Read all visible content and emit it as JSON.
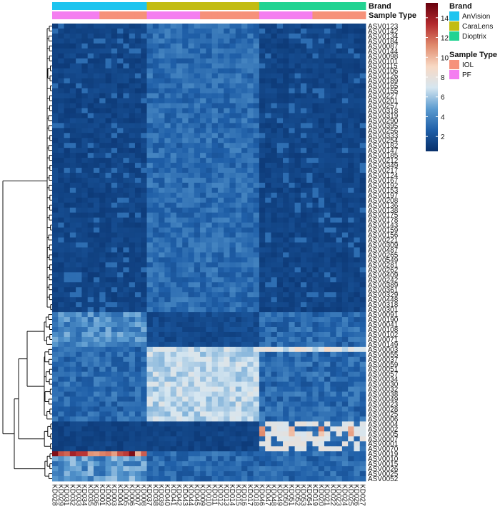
{
  "chart_data": {
    "type": "heatmap",
    "annotation_labels": [
      "Brand",
      "Sample Type"
    ],
    "color_scale": {
      "ticks": [
        2,
        4,
        6,
        8,
        10,
        12,
        14
      ],
      "min": 0.5,
      "max": 15.5,
      "colors": [
        "#08306b",
        "#1f5fa8",
        "#5b9bd0",
        "#d6e6f0",
        "#f8d9c4",
        "#e08a6c",
        "#b32a2e",
        "#67000d"
      ]
    },
    "legend": {
      "brand_title": "Brand",
      "brand": [
        {
          "name": "AnVision",
          "color": "#1ec4ef"
        },
        {
          "name": "CaraLens",
          "color": "#c2bc12"
        },
        {
          "name": "Dioptrix",
          "color": "#22d392"
        }
      ],
      "sample_title": "Sample Type",
      "sample_type": [
        {
          "name": "IOL",
          "color": "#f6917a"
        },
        {
          "name": "PF",
          "color": "#f47ef0"
        }
      ]
    },
    "columns": [
      "KD028",
      "KD029",
      "KD031",
      "KD032",
      "KD033",
      "KD034",
      "KD035",
      "KD036",
      "KD001",
      "KD002",
      "KD003",
      "KD004",
      "KD005",
      "KD006",
      "KD007",
      "KD008",
      "KD037",
      "KD038",
      "KD039",
      "KD040",
      "KD041",
      "KD042",
      "KD043",
      "KD044",
      "KD045",
      "KD009",
      "KD010",
      "KD011",
      "KD012",
      "KD013",
      "KD014",
      "KD015",
      "KD016",
      "KD017",
      "KD018",
      "KD046",
      "KD047",
      "KD048",
      "KD049",
      "KD050",
      "KD051",
      "KD052",
      "KD053",
      "KD054",
      "KD019",
      "KD020",
      "KD021",
      "KD022",
      "KD023",
      "KD024",
      "KD025",
      "KD026",
      "KD027"
    ],
    "column_brand": [
      "AnVision",
      "AnVision",
      "AnVision",
      "AnVision",
      "AnVision",
      "AnVision",
      "AnVision",
      "AnVision",
      "AnVision",
      "AnVision",
      "AnVision",
      "AnVision",
      "AnVision",
      "AnVision",
      "AnVision",
      "AnVision",
      "CaraLens",
      "CaraLens",
      "CaraLens",
      "CaraLens",
      "CaraLens",
      "CaraLens",
      "CaraLens",
      "CaraLens",
      "CaraLens",
      "CaraLens",
      "CaraLens",
      "CaraLens",
      "CaraLens",
      "CaraLens",
      "CaraLens",
      "CaraLens",
      "CaraLens",
      "CaraLens",
      "CaraLens",
      "Dioptrix",
      "Dioptrix",
      "Dioptrix",
      "Dioptrix",
      "Dioptrix",
      "Dioptrix",
      "Dioptrix",
      "Dioptrix",
      "Dioptrix",
      "Dioptrix",
      "Dioptrix",
      "Dioptrix",
      "Dioptrix",
      "Dioptrix",
      "Dioptrix",
      "Dioptrix",
      "Dioptrix",
      "Dioptrix"
    ],
    "column_sample_type": [
      "PF",
      "PF",
      "PF",
      "PF",
      "PF",
      "PF",
      "PF",
      "PF",
      "IOL",
      "IOL",
      "IOL",
      "IOL",
      "IOL",
      "IOL",
      "IOL",
      "IOL",
      "PF",
      "PF",
      "PF",
      "PF",
      "PF",
      "PF",
      "PF",
      "PF",
      "PF",
      "IOL",
      "IOL",
      "IOL",
      "IOL",
      "IOL",
      "IOL",
      "IOL",
      "IOL",
      "IOL",
      "IOL",
      "PF",
      "PF",
      "PF",
      "PF",
      "PF",
      "PF",
      "PF",
      "PF",
      "PF",
      "IOL",
      "IOL",
      "IOL",
      "IOL",
      "IOL",
      "IOL",
      "IOL",
      "IOL",
      "IOL"
    ],
    "rows": [
      "ASV0123",
      "ASV0142",
      "ASV0134",
      "ASV0184",
      "ASV0087",
      "ASV0144",
      "ASV0098",
      "ASV0101",
      "ASV0115",
      "ASV0106",
      "ASV0126",
      "ASV0189",
      "ASV0165",
      "ASV0155",
      "ASV0227",
      "ASV0201",
      "ASV0257",
      "ASV0318",
      "ASV0319",
      "ASV0290",
      "ASV0395",
      "ASV0256",
      "ASV0333",
      "ASV0254",
      "ASV0182",
      "ASV0147",
      "ASV0185",
      "ASV0212",
      "ASV0349",
      "ASV0217",
      "ASV0124",
      "ASV0167",
      "ASV0192",
      "ASV0153",
      "ASV0197",
      "ASV0208",
      "ASV0136",
      "ASV0138",
      "ASV0175",
      "ASV0178",
      "ASV0143",
      "ASV0159",
      "ASV0156",
      "ASV0221",
      "ASV0309",
      "ASV0487",
      "ASV0265",
      "ASV0549",
      "ASV0281",
      "ASV0262",
      "ASV0409",
      "ASV0242",
      "ASV0389",
      "ASV0361",
      "ASV0329",
      "ASV0448",
      "ASV0318",
      "ASV0301",
      "ASV0091",
      "ASV0190",
      "ASV0041",
      "ASV0108",
      "ASV0102",
      "ASV0071",
      "ASV0149",
      "ASV0003",
      "ASV0055",
      "ASV0037",
      "ASV0059",
      "ASV0051",
      "ASV0057",
      "ASV0034",
      "ASV0030",
      "ASV0032",
      "ASV0038",
      "ASV0049",
      "ASV0023",
      "ASV0028",
      "ASV0025",
      "ASV0006",
      "ASV0004",
      "ASV0002",
      "ASV0005",
      "ASV0007",
      "ASV0001",
      "ASV0070",
      "ASV0019",
      "ASV0010",
      "ASV0015",
      "ASV0026",
      "ASV0025",
      "ASV0052"
    ],
    "values_note": "",
    "seed": 7
  }
}
